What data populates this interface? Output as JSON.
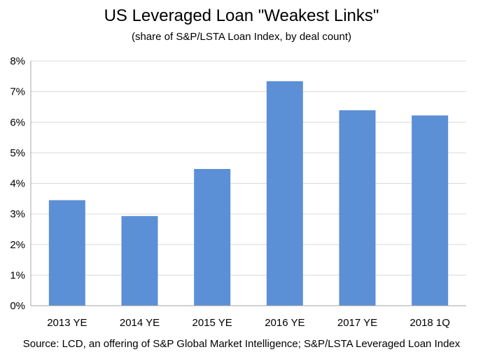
{
  "chart_data": {
    "type": "bar",
    "title": "US Leveraged Loan \"Weakest Links\"",
    "subtitle": "(share of S&P/LSTA Loan Index, by deal count)",
    "categories": [
      "2013 YE",
      "2014 YE",
      "2015 YE",
      "2016 YE",
      "2017 YE",
      "2018 1Q"
    ],
    "values": [
      3.45,
      2.93,
      4.47,
      7.34,
      6.39,
      6.22
    ],
    "unit": "%",
    "ylim": [
      0,
      8
    ],
    "yticks": [
      0,
      1,
      2,
      3,
      4,
      5,
      6,
      7,
      8
    ],
    "ytick_labels": [
      "0%",
      "1%",
      "2%",
      "3%",
      "4%",
      "5%",
      "6%",
      "7%",
      "8%"
    ],
    "xlabel": "",
    "ylabel": "",
    "grid": true,
    "legend": "none",
    "bar_color": "#5B8FD6",
    "grid_color": "#D9D9D9",
    "axis_color": "#A6A6A6",
    "source": "Source: LCD, an offering of S&P Global Market Intelligence; S&P/LSTA Leveraged Loan Index"
  }
}
